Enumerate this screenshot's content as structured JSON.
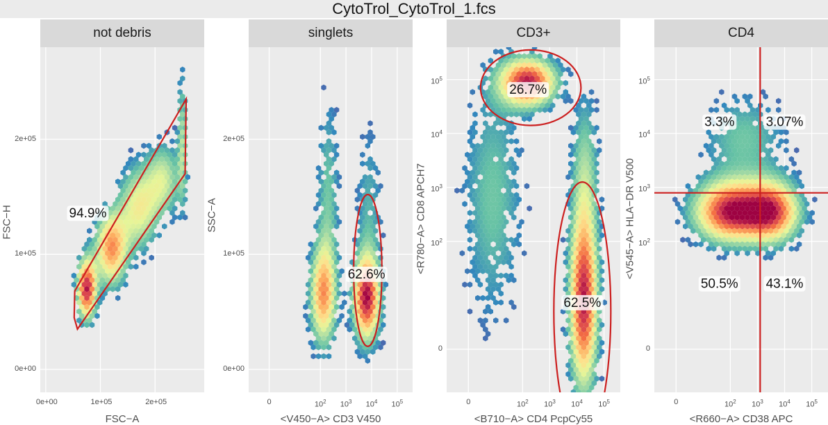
{
  "title": "CytoTrol_CytoTrol_1.fcs",
  "colors": {
    "panel_bg": "#ebebeb",
    "strip_bg": "#d9d9d9",
    "gate": "#cc1f1f",
    "palette": [
      "#5e4fa2",
      "#3288bd",
      "#66c2a5",
      "#abdda4",
      "#e6f598",
      "#fee08b",
      "#fdae61",
      "#f46d43",
      "#d53e4f",
      "#9e0142"
    ]
  },
  "chart_data": [
    {
      "type": "hexbin",
      "strip": "not debris",
      "xlabel": "FSC−A",
      "ylabel": "FSC−H",
      "xlim": [
        -10000,
        290000
      ],
      "ylim": [
        -20000,
        280000
      ],
      "x_ticks": [
        {
          "value": 0,
          "label": "0e+00"
        },
        {
          "value": 100000,
          "label": "1e+05"
        },
        {
          "value": 200000,
          "label": "2e+05"
        }
      ],
      "y_ticks": [
        {
          "value": 0,
          "label": "0e+00"
        },
        {
          "value": 100000,
          "label": "1e+05"
        },
        {
          "value": 200000,
          "label": "2e+05"
        }
      ],
      "gate": {
        "shape": "polygon",
        "label": "94.9%",
        "label_at": [
          77000,
          135000
        ],
        "points": [
          [
            53000,
            68000
          ],
          [
            52000,
            45000
          ],
          [
            58000,
            35000
          ],
          [
            255000,
            170000
          ],
          [
            257000,
            235000
          ]
        ]
      }
    },
    {
      "type": "hexbin",
      "strip": "singlets",
      "xlabel": "<V450−A> CD3 V450",
      "ylabel": "SSC−A",
      "xlim": [
        -0.8,
        5.6
      ],
      "ylim": [
        -20000,
        280000
      ],
      "x_ticks": [
        {
          "value": 0,
          "label": "0"
        },
        {
          "value": 2,
          "label": "10^2"
        },
        {
          "value": 3,
          "label": "10^3"
        },
        {
          "value": 4,
          "label": "10^4"
        },
        {
          "value": 5,
          "label": "10^5"
        }
      ],
      "y_ticks": [
        {
          "value": 0,
          "label": "0e+00"
        },
        {
          "value": 100000,
          "label": "1e+05"
        },
        {
          "value": 200000,
          "label": "2e+05"
        }
      ],
      "gate": {
        "shape": "ellipse",
        "label": "62.6%",
        "label_at": [
          3.8,
          82000
        ],
        "cx": 3.85,
        "cy": 86000,
        "rx": 0.55,
        "ry": 66000
      }
    },
    {
      "type": "hexbin",
      "strip": "CD3+",
      "xlabel": "<B710−A> CD4 PcpCy55",
      "ylabel": "<R780−A> CD8 APCH7",
      "xlim": [
        -0.8,
        5.6
      ],
      "ylim": [
        -0.8,
        5.6
      ],
      "x_ticks": [
        {
          "value": 0,
          "label": "0"
        },
        {
          "value": 2,
          "label": "10^2"
        },
        {
          "value": 3,
          "label": "10^3"
        },
        {
          "value": 4,
          "label": "10^4"
        },
        {
          "value": 5,
          "label": "10^5"
        }
      ],
      "y_ticks": [
        {
          "value": 0,
          "label": "0"
        },
        {
          "value": 2,
          "label": "10^2"
        },
        {
          "value": 3,
          "label": "10^3"
        },
        {
          "value": 4,
          "label": "10^4"
        },
        {
          "value": 5,
          "label": "10^5"
        }
      ],
      "gate": [
        {
          "shape": "ellipse",
          "label": "26.7%",
          "label_at": [
            2.2,
            4.8
          ],
          "cx": 2.3,
          "cy": 4.85,
          "rx": 1.85,
          "ry": 0.7
        },
        {
          "shape": "ellipse",
          "label": "62.5%",
          "label_at": [
            4.2,
            0.85
          ],
          "cx": 4.2,
          "cy": 0.7,
          "rx": 1.05,
          "ry": 2.4
        }
      ]
    },
    {
      "type": "hexbin",
      "strip": "CD4",
      "xlabel": "<R660−A> CD38 APC",
      "ylabel": "<V545−A> HLA−DR V500",
      "xlim": [
        -0.8,
        5.6
      ],
      "ylim": [
        -0.8,
        5.6
      ],
      "x_ticks": [
        {
          "value": 0,
          "label": "0"
        },
        {
          "value": 2,
          "label": "10^2"
        },
        {
          "value": 3,
          "label": "10^3"
        },
        {
          "value": 4,
          "label": "10^4"
        },
        {
          "value": 5,
          "label": "10^5"
        }
      ],
      "y_ticks": [
        {
          "value": 0,
          "label": "0"
        },
        {
          "value": 2,
          "label": "10^2"
        },
        {
          "value": 3,
          "label": "10^3"
        },
        {
          "value": 4,
          "label": "10^4"
        },
        {
          "value": 5,
          "label": "10^5"
        }
      ],
      "gate": {
        "shape": "quadrant",
        "x": 3.1,
        "y": 2.9,
        "labels": [
          {
            "label": "3.3%",
            "at": [
              1.6,
              4.2
            ]
          },
          {
            "label": "3.07%",
            "at": [
              4.0,
              4.2
            ]
          },
          {
            "label": "50.5%",
            "at": [
              1.6,
              1.2
            ]
          },
          {
            "label": "43.1%",
            "at": [
              4.0,
              1.2
            ]
          }
        ]
      }
    }
  ]
}
